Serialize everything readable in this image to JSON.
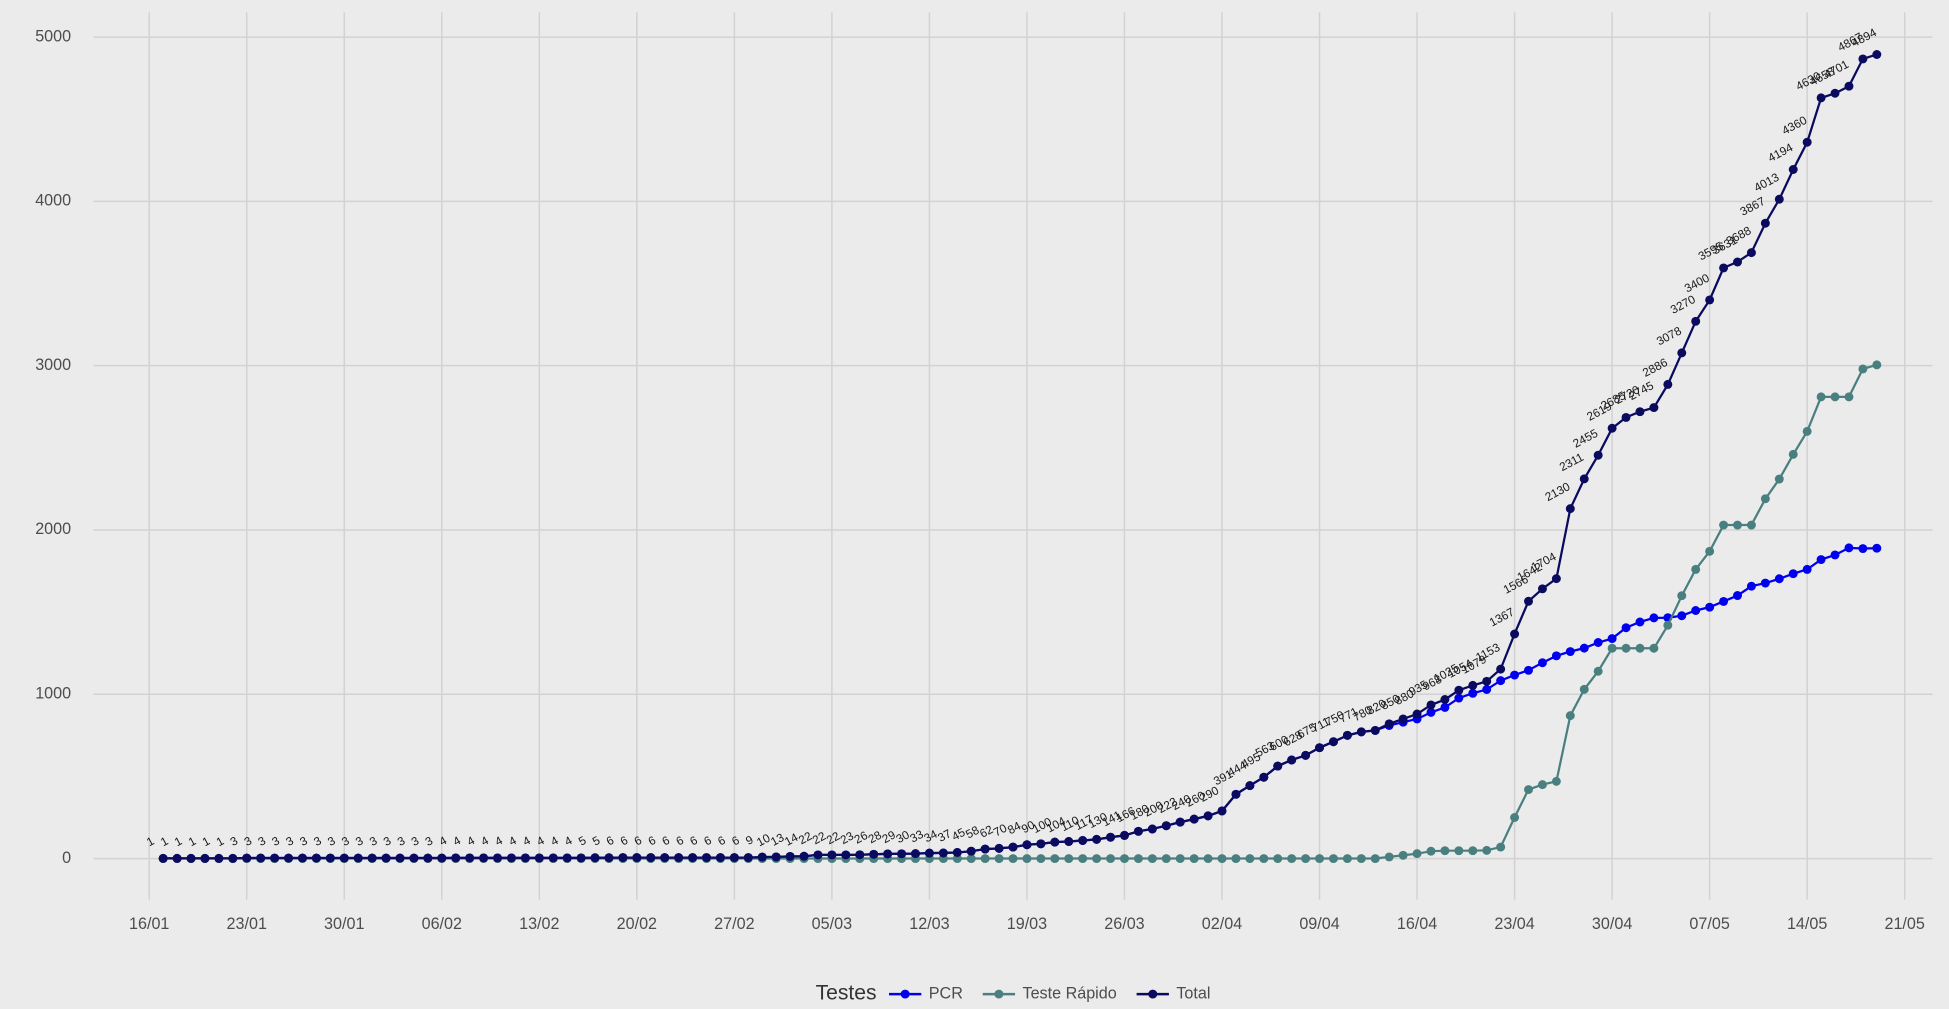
{
  "chart_data": {
    "type": "line",
    "x": [
      "17/01",
      "18/01",
      "19/01",
      "20/01",
      "21/01",
      "22/01",
      "23/01",
      "24/01",
      "25/01",
      "26/01",
      "27/01",
      "28/01",
      "29/01",
      "30/01",
      "31/01",
      "01/02",
      "02/02",
      "03/02",
      "04/02",
      "05/02",
      "06/02",
      "07/02",
      "08/02",
      "09/02",
      "10/02",
      "11/02",
      "12/02",
      "13/02",
      "14/02",
      "15/02",
      "16/02",
      "17/02",
      "18/02",
      "19/02",
      "20/02",
      "21/02",
      "22/02",
      "23/02",
      "24/02",
      "25/02",
      "26/02",
      "27/02",
      "28/02",
      "29/02",
      "01/03",
      "02/03",
      "03/03",
      "04/03",
      "05/03",
      "06/03",
      "07/03",
      "08/03",
      "09/03",
      "10/03",
      "11/03",
      "12/03",
      "13/03",
      "14/03",
      "15/03",
      "16/03",
      "17/03",
      "18/03",
      "19/03",
      "20/03",
      "21/03",
      "22/03",
      "23/03",
      "24/03",
      "25/03",
      "26/03",
      "27/03",
      "28/03",
      "29/03",
      "30/03",
      "31/03",
      "01/04",
      "02/04",
      "03/04",
      "04/04",
      "05/04",
      "06/04",
      "07/04",
      "08/04",
      "09/04",
      "10/04",
      "11/04",
      "12/04",
      "13/04",
      "14/04",
      "15/04",
      "16/04",
      "17/04",
      "18/04",
      "19/04",
      "20/04",
      "21/04",
      "22/04",
      "23/04",
      "24/04",
      "25/04",
      "26/04",
      "27/04",
      "28/04",
      "29/04",
      "30/04",
      "01/05",
      "02/05",
      "03/05",
      "04/05",
      "05/05",
      "06/05",
      "07/05",
      "08/05",
      "09/05",
      "10/05",
      "11/05",
      "12/05",
      "13/05",
      "14/05",
      "15/05",
      "16/05",
      "17/05",
      "18/05",
      "19/05"
    ],
    "series": [
      {
        "name": "PCR",
        "color": "#0000ee",
        "values": [
          1,
          1,
          1,
          1,
          1,
          1,
          3,
          3,
          3,
          3,
          3,
          3,
          3,
          3,
          3,
          3,
          3,
          3,
          3,
          3,
          3,
          4,
          4,
          4,
          4,
          4,
          4,
          4,
          4,
          4,
          4,
          5,
          5,
          6,
          6,
          6,
          6,
          6,
          6,
          6,
          6,
          6,
          6,
          9,
          10,
          13,
          14,
          22,
          22,
          22,
          23,
          26,
          28,
          29,
          30,
          33,
          34,
          37,
          45,
          58,
          62,
          70,
          84,
          90,
          100,
          104,
          110,
          117,
          130,
          141,
          166,
          180,
          200,
          222,
          240,
          260,
          290,
          391,
          444,
          495,
          563,
          600,
          628,
          675,
          711,
          750,
          771,
          780,
          810,
          830,
          850,
          890,
          920,
          977,
          1006,
          1029,
          1083,
          1117,
          1146,
          1192,
          1234,
          1260,
          1281,
          1315,
          1339,
          1405,
          1440,
          1465,
          1466,
          1478,
          1510,
          1530,
          1565,
          1601,
          1658,
          1677,
          1703,
          1734,
          1760,
          1820,
          1848,
          1891,
          1887,
          1889
        ]
      },
      {
        "name": "Teste Rápido",
        "color": "#4a7f80",
        "values": [
          0,
          0,
          0,
          0,
          0,
          0,
          0,
          0,
          0,
          0,
          0,
          0,
          0,
          0,
          0,
          0,
          0,
          0,
          0,
          0,
          0,
          0,
          0,
          0,
          0,
          0,
          0,
          0,
          0,
          0,
          0,
          0,
          0,
          0,
          0,
          0,
          0,
          0,
          0,
          0,
          0,
          0,
          0,
          0,
          0,
          0,
          0,
          0,
          0,
          0,
          0,
          0,
          0,
          0,
          0,
          0,
          0,
          0,
          0,
          0,
          0,
          0,
          0,
          0,
          0,
          0,
          0,
          0,
          0,
          0,
          0,
          0,
          0,
          0,
          0,
          0,
          0,
          0,
          0,
          0,
          0,
          0,
          0,
          0,
          0,
          0,
          0,
          0,
          10,
          20,
          30,
          45,
          48,
          48,
          48,
          50,
          70,
          250,
          420,
          450,
          470,
          870,
          1030,
          1140,
          1280,
          1280,
          1280,
          1280,
          1420,
          1600,
          1760,
          1870,
          2030,
          2030,
          2030,
          2190,
          2310,
          2460,
          2600,
          2810,
          2810,
          2810,
          2980,
          3005
        ]
      },
      {
        "name": "Total",
        "color": "#0a0a5e",
        "values": [
          1,
          1,
          1,
          1,
          1,
          1,
          3,
          3,
          3,
          3,
          3,
          3,
          3,
          3,
          3,
          3,
          3,
          3,
          3,
          3,
          3,
          4,
          4,
          4,
          4,
          4,
          4,
          4,
          4,
          4,
          4,
          5,
          5,
          6,
          6,
          6,
          6,
          6,
          6,
          6,
          6,
          6,
          6,
          9,
          10,
          13,
          14,
          22,
          22,
          22,
          23,
          26,
          28,
          29,
          30,
          33,
          34,
          37,
          45,
          58,
          62,
          70,
          84,
          90,
          100,
          104,
          110,
          117,
          130,
          141,
          166,
          180,
          200,
          222,
          240,
          260,
          290,
          391,
          444,
          495,
          563,
          600,
          628,
          675,
          711,
          750,
          771,
          780,
          820,
          850,
          880,
          935,
          968,
          1025,
          1054,
          1079,
          1153,
          1367,
          1566,
          1642,
          1704,
          2130,
          2311,
          2455,
          2619,
          2685,
          2720,
          2745,
          2886,
          3078,
          3270,
          3400,
          3595,
          3631,
          3688,
          3867,
          4013,
          4194,
          4360,
          4630,
          4658,
          4701,
          4867,
          4894
        ]
      }
    ],
    "data_labels_series": "Total",
    "xlim": [
      "12/01",
      "23/05"
    ],
    "xticks": [
      "16/01",
      "23/01",
      "30/01",
      "06/02",
      "13/02",
      "20/02",
      "27/02",
      "05/03",
      "12/03",
      "19/03",
      "26/03",
      "02/04",
      "09/04",
      "16/04",
      "23/04",
      "30/04",
      "07/05",
      "14/05",
      "21/05"
    ],
    "ylim": [
      -250,
      5150
    ],
    "yticks": [
      0,
      1000,
      2000,
      3000,
      4000,
      5000
    ],
    "grid": true,
    "legend_title": "Testes",
    "legend_position": "bottom"
  }
}
